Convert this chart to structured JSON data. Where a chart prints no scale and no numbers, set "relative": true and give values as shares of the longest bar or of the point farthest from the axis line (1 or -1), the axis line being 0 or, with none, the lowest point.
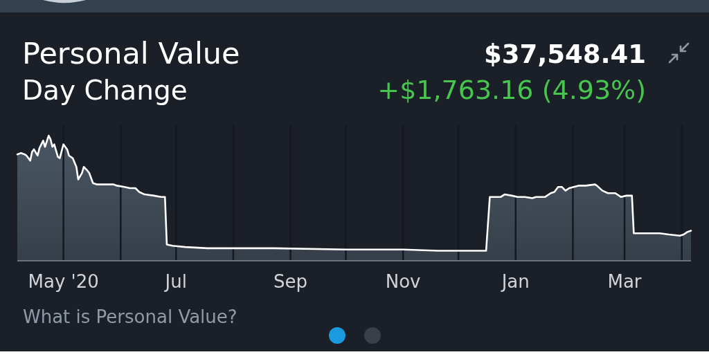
{
  "chart_data": {
    "type": "area",
    "title": "Personal Value",
    "subtitle": "Day Change",
    "annotations": [
      "$37,548.41",
      "+$1,763.16 (4.93%)",
      "What is Personal Value?"
    ],
    "relative": true,
    "color": "#4a5764",
    "x": [
      "2020-04-06",
      "2020-04-08",
      "2020-04-10",
      "2020-04-11",
      "2020-04-13",
      "2020-04-14",
      "2020-04-15",
      "2020-04-17",
      "2020-04-18",
      "2020-04-20",
      "2020-04-21",
      "2020-04-23",
      "2020-04-24",
      "2020-04-25",
      "2020-04-26",
      "2020-04-28",
      "2020-04-29",
      "2020-05-01",
      "2020-05-03",
      "2020-05-04",
      "2020-05-06",
      "2020-05-08",
      "2020-05-09",
      "2020-05-11",
      "2020-05-12",
      "2020-05-14",
      "2020-05-15",
      "2020-05-17",
      "2020-05-19",
      "2020-05-23",
      "2020-05-28",
      "2020-05-30",
      "2020-06-03",
      "2020-06-06",
      "2020-06-09",
      "2020-06-11",
      "2020-06-14",
      "2020-06-19",
      "2020-06-23",
      "2020-06-25",
      "2020-06-26",
      "2020-06-29",
      "2020-07-06",
      "2020-07-18",
      "2020-08-05",
      "2020-08-23",
      "2020-10-01",
      "2020-11-01",
      "2020-11-20",
      "2020-12-16",
      "2020-12-18",
      "2020-12-24",
      "2020-12-26",
      "2020-12-30",
      "2021-01-02",
      "2021-01-06",
      "2021-01-10",
      "2021-01-12",
      "2021-01-17",
      "2021-01-20",
      "2021-01-22",
      "2021-01-24",
      "2021-01-26",
      "2021-01-28",
      "2021-01-30",
      "2021-02-04",
      "2021-02-08",
      "2021-02-13",
      "2021-02-14",
      "2021-02-17",
      "2021-02-20",
      "2021-02-24",
      "2021-02-27",
      "2021-03-02",
      "2021-03-05",
      "2021-03-06",
      "2021-03-12",
      "2021-03-20",
      "2021-03-25",
      "2021-03-31",
      "2021-04-02",
      "2021-04-04",
      "2021-04-06"
    ],
    "values": [
      0.85,
      0.86,
      0.85,
      0.84,
      0.8,
      0.87,
      0.89,
      0.84,
      0.9,
      0.96,
      0.91,
      1.0,
      0.97,
      0.91,
      0.93,
      0.83,
      0.82,
      0.93,
      0.89,
      0.84,
      0.82,
      0.75,
      0.65,
      0.7,
      0.75,
      0.72,
      0.7,
      0.62,
      0.61,
      0.61,
      0.61,
      0.6,
      0.59,
      0.58,
      0.58,
      0.55,
      0.53,
      0.52,
      0.51,
      0.51,
      0.13,
      0.12,
      0.11,
      0.1,
      0.1,
      0.1,
      0.09,
      0.09,
      0.08,
      0.08,
      0.51,
      0.51,
      0.53,
      0.52,
      0.51,
      0.51,
      0.5,
      0.51,
      0.51,
      0.54,
      0.55,
      0.59,
      0.59,
      0.56,
      0.58,
      0.6,
      0.6,
      0.61,
      0.6,
      0.56,
      0.54,
      0.54,
      0.51,
      0.52,
      0.52,
      0.22,
      0.22,
      0.22,
      0.21,
      0.2,
      0.21,
      0.23,
      0.24
    ],
    "xlim": [
      "2020-04-06",
      "2021-04-06"
    ],
    "xticks": [
      {
        "value": "2020-05-01",
        "label": "May '20"
      },
      {
        "value": "2020-06-01",
        "label": null
      },
      {
        "value": "2020-07-01",
        "label": "Jul"
      },
      {
        "value": "2020-08-01",
        "label": null
      },
      {
        "value": "2020-09-01",
        "label": "Sep"
      },
      {
        "value": "2020-10-01",
        "label": null
      },
      {
        "value": "2020-11-01",
        "label": "Nov"
      },
      {
        "value": "2020-12-01",
        "label": null
      },
      {
        "value": "2021-01-01",
        "label": "Jan"
      },
      {
        "value": "2021-02-01",
        "label": null
      },
      {
        "value": "2021-03-01",
        "label": "Mar"
      },
      {
        "value": "2021-04-01",
        "label": null
      }
    ],
    "grid": "x"
  }
}
